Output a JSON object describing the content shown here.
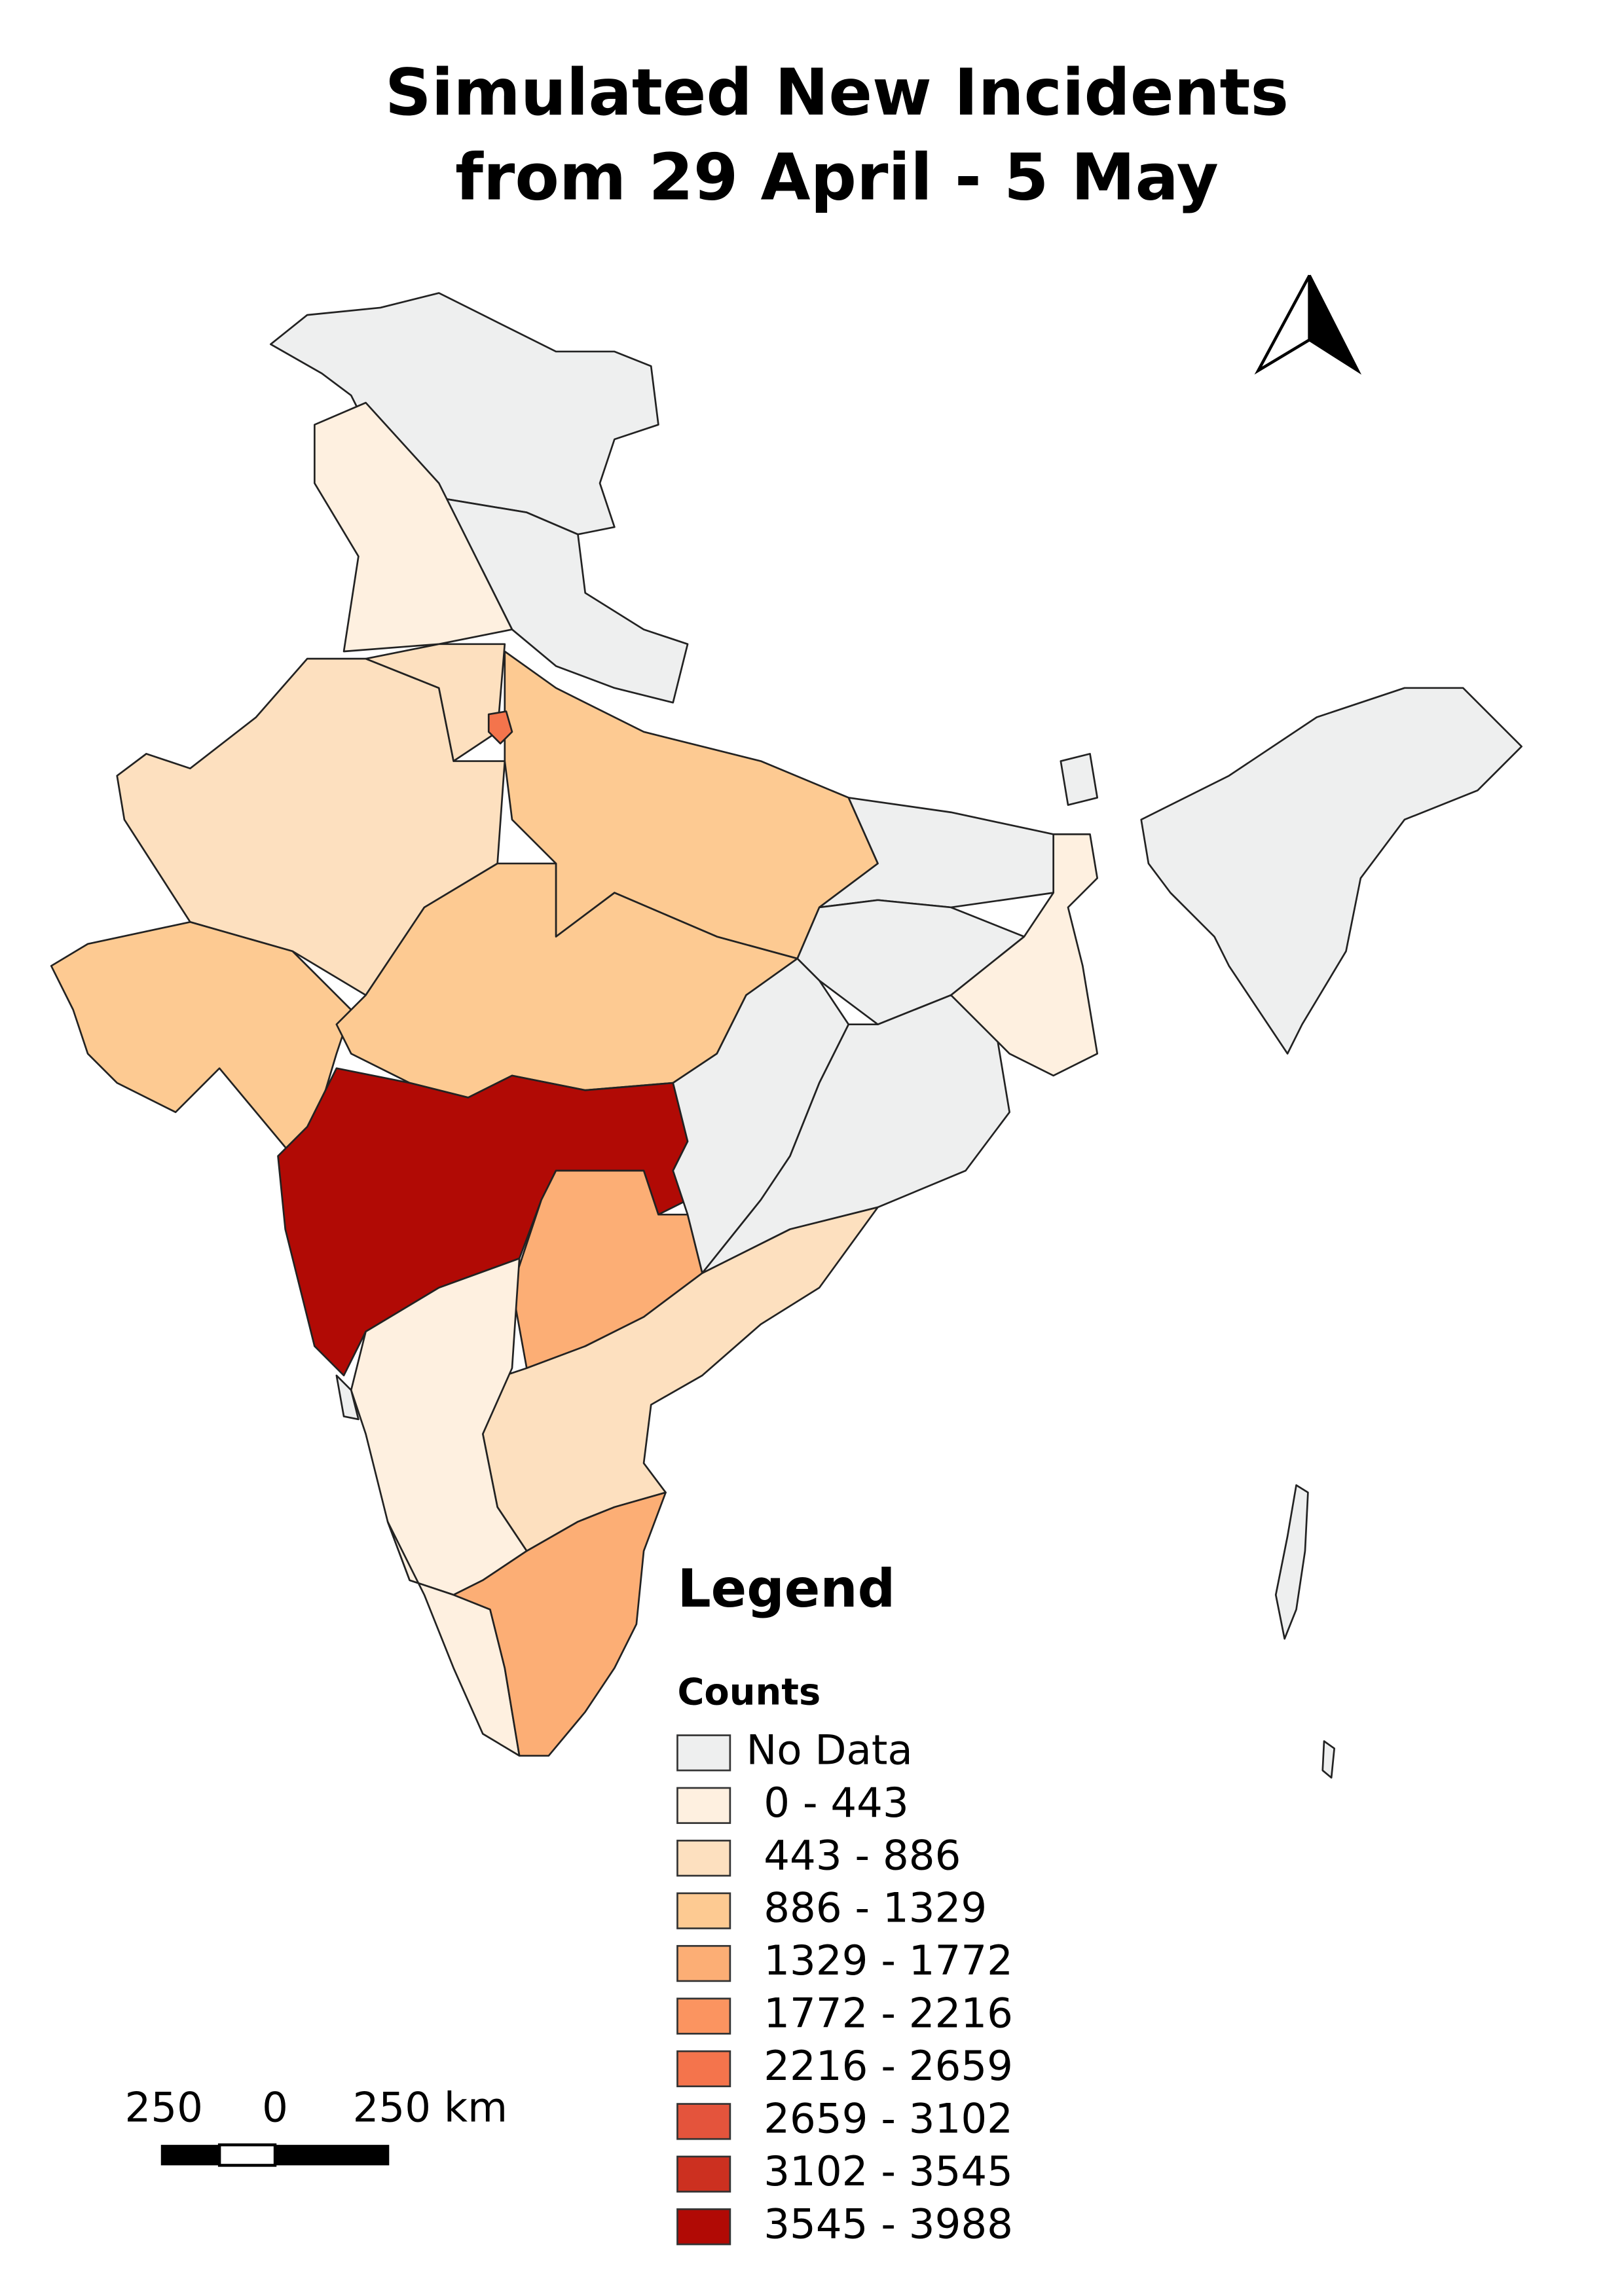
{
  "title": {
    "lines": [
      "Simulated New Incidents",
      "from 29 April - 5 May"
    ]
  },
  "legend": {
    "title": "Legend",
    "subtitle": "Counts",
    "items": [
      {
        "label": "No Data",
        "color": "#eeefef"
      },
      {
        "label": "0 - 443",
        "color": "#fef0e0"
      },
      {
        "label": "443 - 886",
        "color": "#fde0bf"
      },
      {
        "label": "886 - 1329",
        "color": "#fdca92"
      },
      {
        "label": "1329 - 1772",
        "color": "#fcae75"
      },
      {
        "label": "1772 - 2216",
        "color": "#fb9460"
      },
      {
        "label": "2216 - 2659",
        "color": "#f4744c"
      },
      {
        "label": "2659 - 3102",
        "color": "#e4543c"
      },
      {
        "label": "3102 - 3545",
        "color": "#cc3020"
      },
      {
        "label": "3545 - 3988",
        "color": "#b10a05"
      }
    ]
  },
  "scale_bar": {
    "labels": [
      "250",
      "0",
      "250 km"
    ]
  }
}
